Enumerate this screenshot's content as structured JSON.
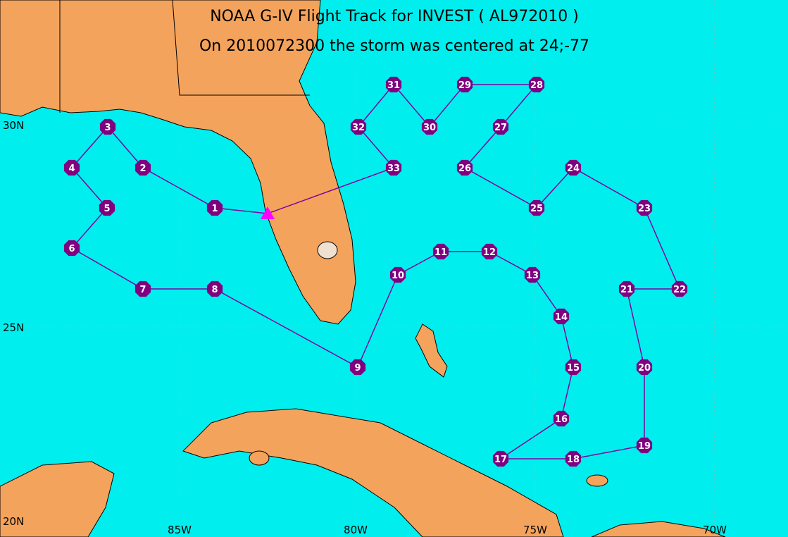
{
  "header": {
    "title": "NOAA G-IV Flight Track for INVEST ( AL972010 )",
    "subtitle": "On 2010072300 the storm was centered at 24;-77"
  },
  "axes": {
    "lon_labels": [
      "85W",
      "80W",
      "75W",
      "70W"
    ],
    "lat_labels": [
      "30N",
      "25N",
      "20N"
    ]
  },
  "waypoints": [
    "1",
    "2",
    "3",
    "4",
    "5",
    "6",
    "7",
    "8",
    "9",
    "10",
    "11",
    "12",
    "13",
    "14",
    "15",
    "16",
    "17",
    "18",
    "19",
    "20",
    "21",
    "22",
    "23",
    "24",
    "25",
    "26",
    "27",
    "28",
    "29",
    "30",
    "31",
    "32",
    "33"
  ]
}
